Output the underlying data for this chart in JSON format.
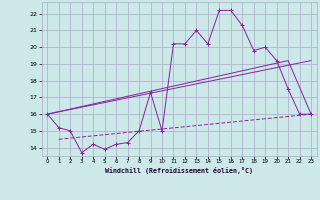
{
  "xlabel": "Windchill (Refroidissement éolien,°C)",
  "bg_color": "#cce8e8",
  "grid_color": "#aaaacc",
  "line_color": "#882299",
  "xlim": [
    -0.5,
    23.5
  ],
  "ylim": [
    13.5,
    22.7
  ],
  "xticks": [
    0,
    1,
    2,
    3,
    4,
    5,
    6,
    7,
    8,
    9,
    10,
    11,
    12,
    13,
    14,
    15,
    16,
    17,
    18,
    19,
    20,
    21,
    22,
    23
  ],
  "yticks": [
    14,
    15,
    16,
    17,
    18,
    19,
    20,
    21,
    22
  ],
  "line1_x": [
    0,
    1,
    2,
    3,
    4,
    5,
    6,
    7,
    8,
    9,
    10,
    11,
    12,
    13,
    14,
    15,
    16,
    17,
    18,
    19,
    20,
    21,
    22,
    23
  ],
  "line1_y": [
    16.0,
    15.2,
    15.0,
    13.7,
    14.2,
    13.9,
    14.2,
    14.3,
    15.0,
    17.3,
    15.0,
    20.2,
    20.2,
    21.0,
    20.2,
    22.2,
    22.2,
    21.3,
    19.8,
    20.0,
    19.2,
    17.5,
    16.0,
    16.0
  ],
  "line2_x": [
    0,
    23
  ],
  "line2_y": [
    16.0,
    19.2
  ],
  "line3_x": [
    0,
    21,
    23
  ],
  "line3_y": [
    16.0,
    19.2,
    16.0
  ],
  "line4_x": [
    1,
    23
  ],
  "line4_y": [
    14.5,
    16.0
  ]
}
